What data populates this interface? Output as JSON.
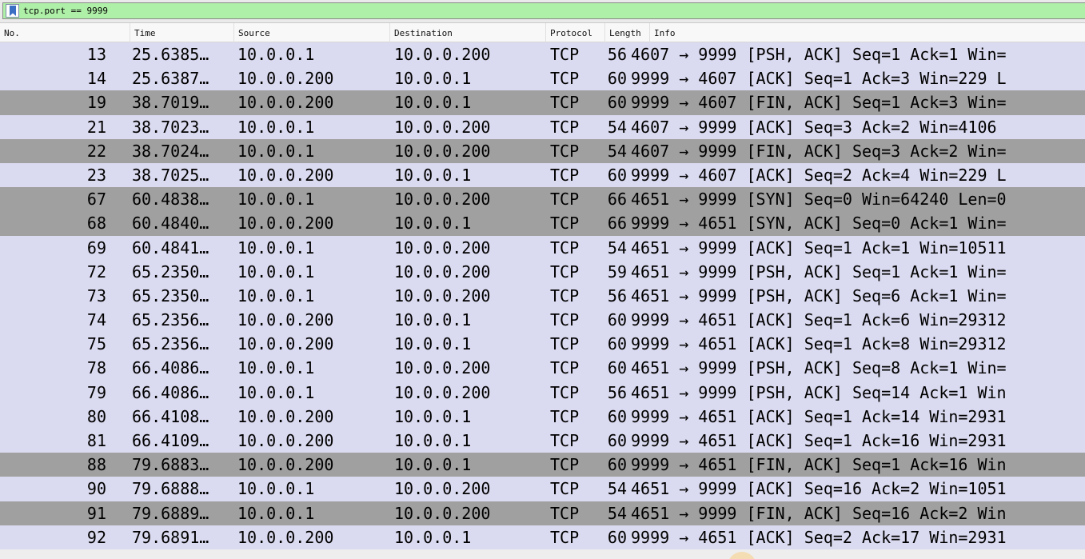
{
  "filter": {
    "text": "tcp.port == 9999",
    "bookmark_icon": "bookmark-icon"
  },
  "columns": {
    "no": "No.",
    "time": "Time",
    "source": "Source",
    "destination": "Destination",
    "protocol": "Protocol",
    "length": "Length",
    "info": "Info"
  },
  "colors": {
    "row_normal": "#dadaf0",
    "row_flag": "#a0a0a0",
    "filter_valid": "#aff0a8"
  },
  "packets": [
    {
      "no": "13",
      "time": "25.6385…",
      "source": "10.0.0.1",
      "destination": "10.0.0.200",
      "protocol": "TCP",
      "length": "56",
      "info": "4607 → 9999 [PSH, ACK] Seq=1 Ack=1 Win=",
      "style": "normal"
    },
    {
      "no": "14",
      "time": "25.6387…",
      "source": "10.0.0.200",
      "destination": "10.0.0.1",
      "protocol": "TCP",
      "length": "60",
      "info": "9999 → 4607 [ACK] Seq=1 Ack=3 Win=229 L",
      "style": "normal"
    },
    {
      "no": "19",
      "time": "38.7019…",
      "source": "10.0.0.200",
      "destination": "10.0.0.1",
      "protocol": "TCP",
      "length": "60",
      "info": "9999 → 4607 [FIN, ACK] Seq=1 Ack=3 Win=",
      "style": "flag"
    },
    {
      "no": "21",
      "time": "38.7023…",
      "source": "10.0.0.1",
      "destination": "10.0.0.200",
      "protocol": "TCP",
      "length": "54",
      "info": "4607 → 9999 [ACK] Seq=3 Ack=2 Win=4106",
      "style": "normal"
    },
    {
      "no": "22",
      "time": "38.7024…",
      "source": "10.0.0.1",
      "destination": "10.0.0.200",
      "protocol": "TCP",
      "length": "54",
      "info": "4607 → 9999 [FIN, ACK] Seq=3 Ack=2 Win=",
      "style": "flag"
    },
    {
      "no": "23",
      "time": "38.7025…",
      "source": "10.0.0.200",
      "destination": "10.0.0.1",
      "protocol": "TCP",
      "length": "60",
      "info": "9999 → 4607 [ACK] Seq=2 Ack=4 Win=229 L",
      "style": "normal"
    },
    {
      "no": "67",
      "time": "60.4838…",
      "source": "10.0.0.1",
      "destination": "10.0.0.200",
      "protocol": "TCP",
      "length": "66",
      "info": "4651 → 9999 [SYN] Seq=0 Win=64240 Len=0",
      "style": "flag"
    },
    {
      "no": "68",
      "time": "60.4840…",
      "source": "10.0.0.200",
      "destination": "10.0.0.1",
      "protocol": "TCP",
      "length": "66",
      "info": "9999 → 4651 [SYN, ACK] Seq=0 Ack=1 Win=",
      "style": "flag"
    },
    {
      "no": "69",
      "time": "60.4841…",
      "source": "10.0.0.1",
      "destination": "10.0.0.200",
      "protocol": "TCP",
      "length": "54",
      "info": "4651 → 9999 [ACK] Seq=1 Ack=1 Win=10511",
      "style": "normal"
    },
    {
      "no": "72",
      "time": "65.2350…",
      "source": "10.0.0.1",
      "destination": "10.0.0.200",
      "protocol": "TCP",
      "length": "59",
      "info": "4651 → 9999 [PSH, ACK] Seq=1 Ack=1 Win=",
      "style": "normal"
    },
    {
      "no": "73",
      "time": "65.2350…",
      "source": "10.0.0.1",
      "destination": "10.0.0.200",
      "protocol": "TCP",
      "length": "56",
      "info": "4651 → 9999 [PSH, ACK] Seq=6 Ack=1 Win=",
      "style": "normal"
    },
    {
      "no": "74",
      "time": "65.2356…",
      "source": "10.0.0.200",
      "destination": "10.0.0.1",
      "protocol": "TCP",
      "length": "60",
      "info": "9999 → 4651 [ACK] Seq=1 Ack=6 Win=29312",
      "style": "normal"
    },
    {
      "no": "75",
      "time": "65.2356…",
      "source": "10.0.0.200",
      "destination": "10.0.0.1",
      "protocol": "TCP",
      "length": "60",
      "info": "9999 → 4651 [ACK] Seq=1 Ack=8 Win=29312",
      "style": "normal"
    },
    {
      "no": "78",
      "time": "66.4086…",
      "source": "10.0.0.1",
      "destination": "10.0.0.200",
      "protocol": "TCP",
      "length": "60",
      "info": "4651 → 9999 [PSH, ACK] Seq=8 Ack=1 Win=",
      "style": "normal"
    },
    {
      "no": "79",
      "time": "66.4086…",
      "source": "10.0.0.1",
      "destination": "10.0.0.200",
      "protocol": "TCP",
      "length": "56",
      "info": "4651 → 9999 [PSH, ACK] Seq=14 Ack=1 Win",
      "style": "normal"
    },
    {
      "no": "80",
      "time": "66.4108…",
      "source": "10.0.0.200",
      "destination": "10.0.0.1",
      "protocol": "TCP",
      "length": "60",
      "info": "9999 → 4651 [ACK] Seq=1 Ack=14 Win=2931",
      "style": "normal"
    },
    {
      "no": "81",
      "time": "66.4109…",
      "source": "10.0.0.200",
      "destination": "10.0.0.1",
      "protocol": "TCP",
      "length": "60",
      "info": "9999 → 4651 [ACK] Seq=1 Ack=16 Win=2931",
      "style": "normal"
    },
    {
      "no": "88",
      "time": "79.6883…",
      "source": "10.0.0.200",
      "destination": "10.0.0.1",
      "protocol": "TCP",
      "length": "60",
      "info": "9999 → 4651 [FIN, ACK] Seq=1 Ack=16 Win",
      "style": "flag"
    },
    {
      "no": "90",
      "time": "79.6888…",
      "source": "10.0.0.1",
      "destination": "10.0.0.200",
      "protocol": "TCP",
      "length": "54",
      "info": "4651 → 9999 [ACK] Seq=16 Ack=2 Win=1051",
      "style": "normal"
    },
    {
      "no": "91",
      "time": "79.6889…",
      "source": "10.0.0.1",
      "destination": "10.0.0.200",
      "protocol": "TCP",
      "length": "54",
      "info": "4651 → 9999 [FIN, ACK] Seq=16 Ack=2 Win",
      "style": "flag"
    },
    {
      "no": "92",
      "time": "79.6891…",
      "source": "10.0.0.200",
      "destination": "10.0.0.1",
      "protocol": "TCP",
      "length": "60",
      "info": "9999 → 4651 [ACK] Seq=2 Ack=17 Win=2931",
      "style": "normal"
    }
  ]
}
